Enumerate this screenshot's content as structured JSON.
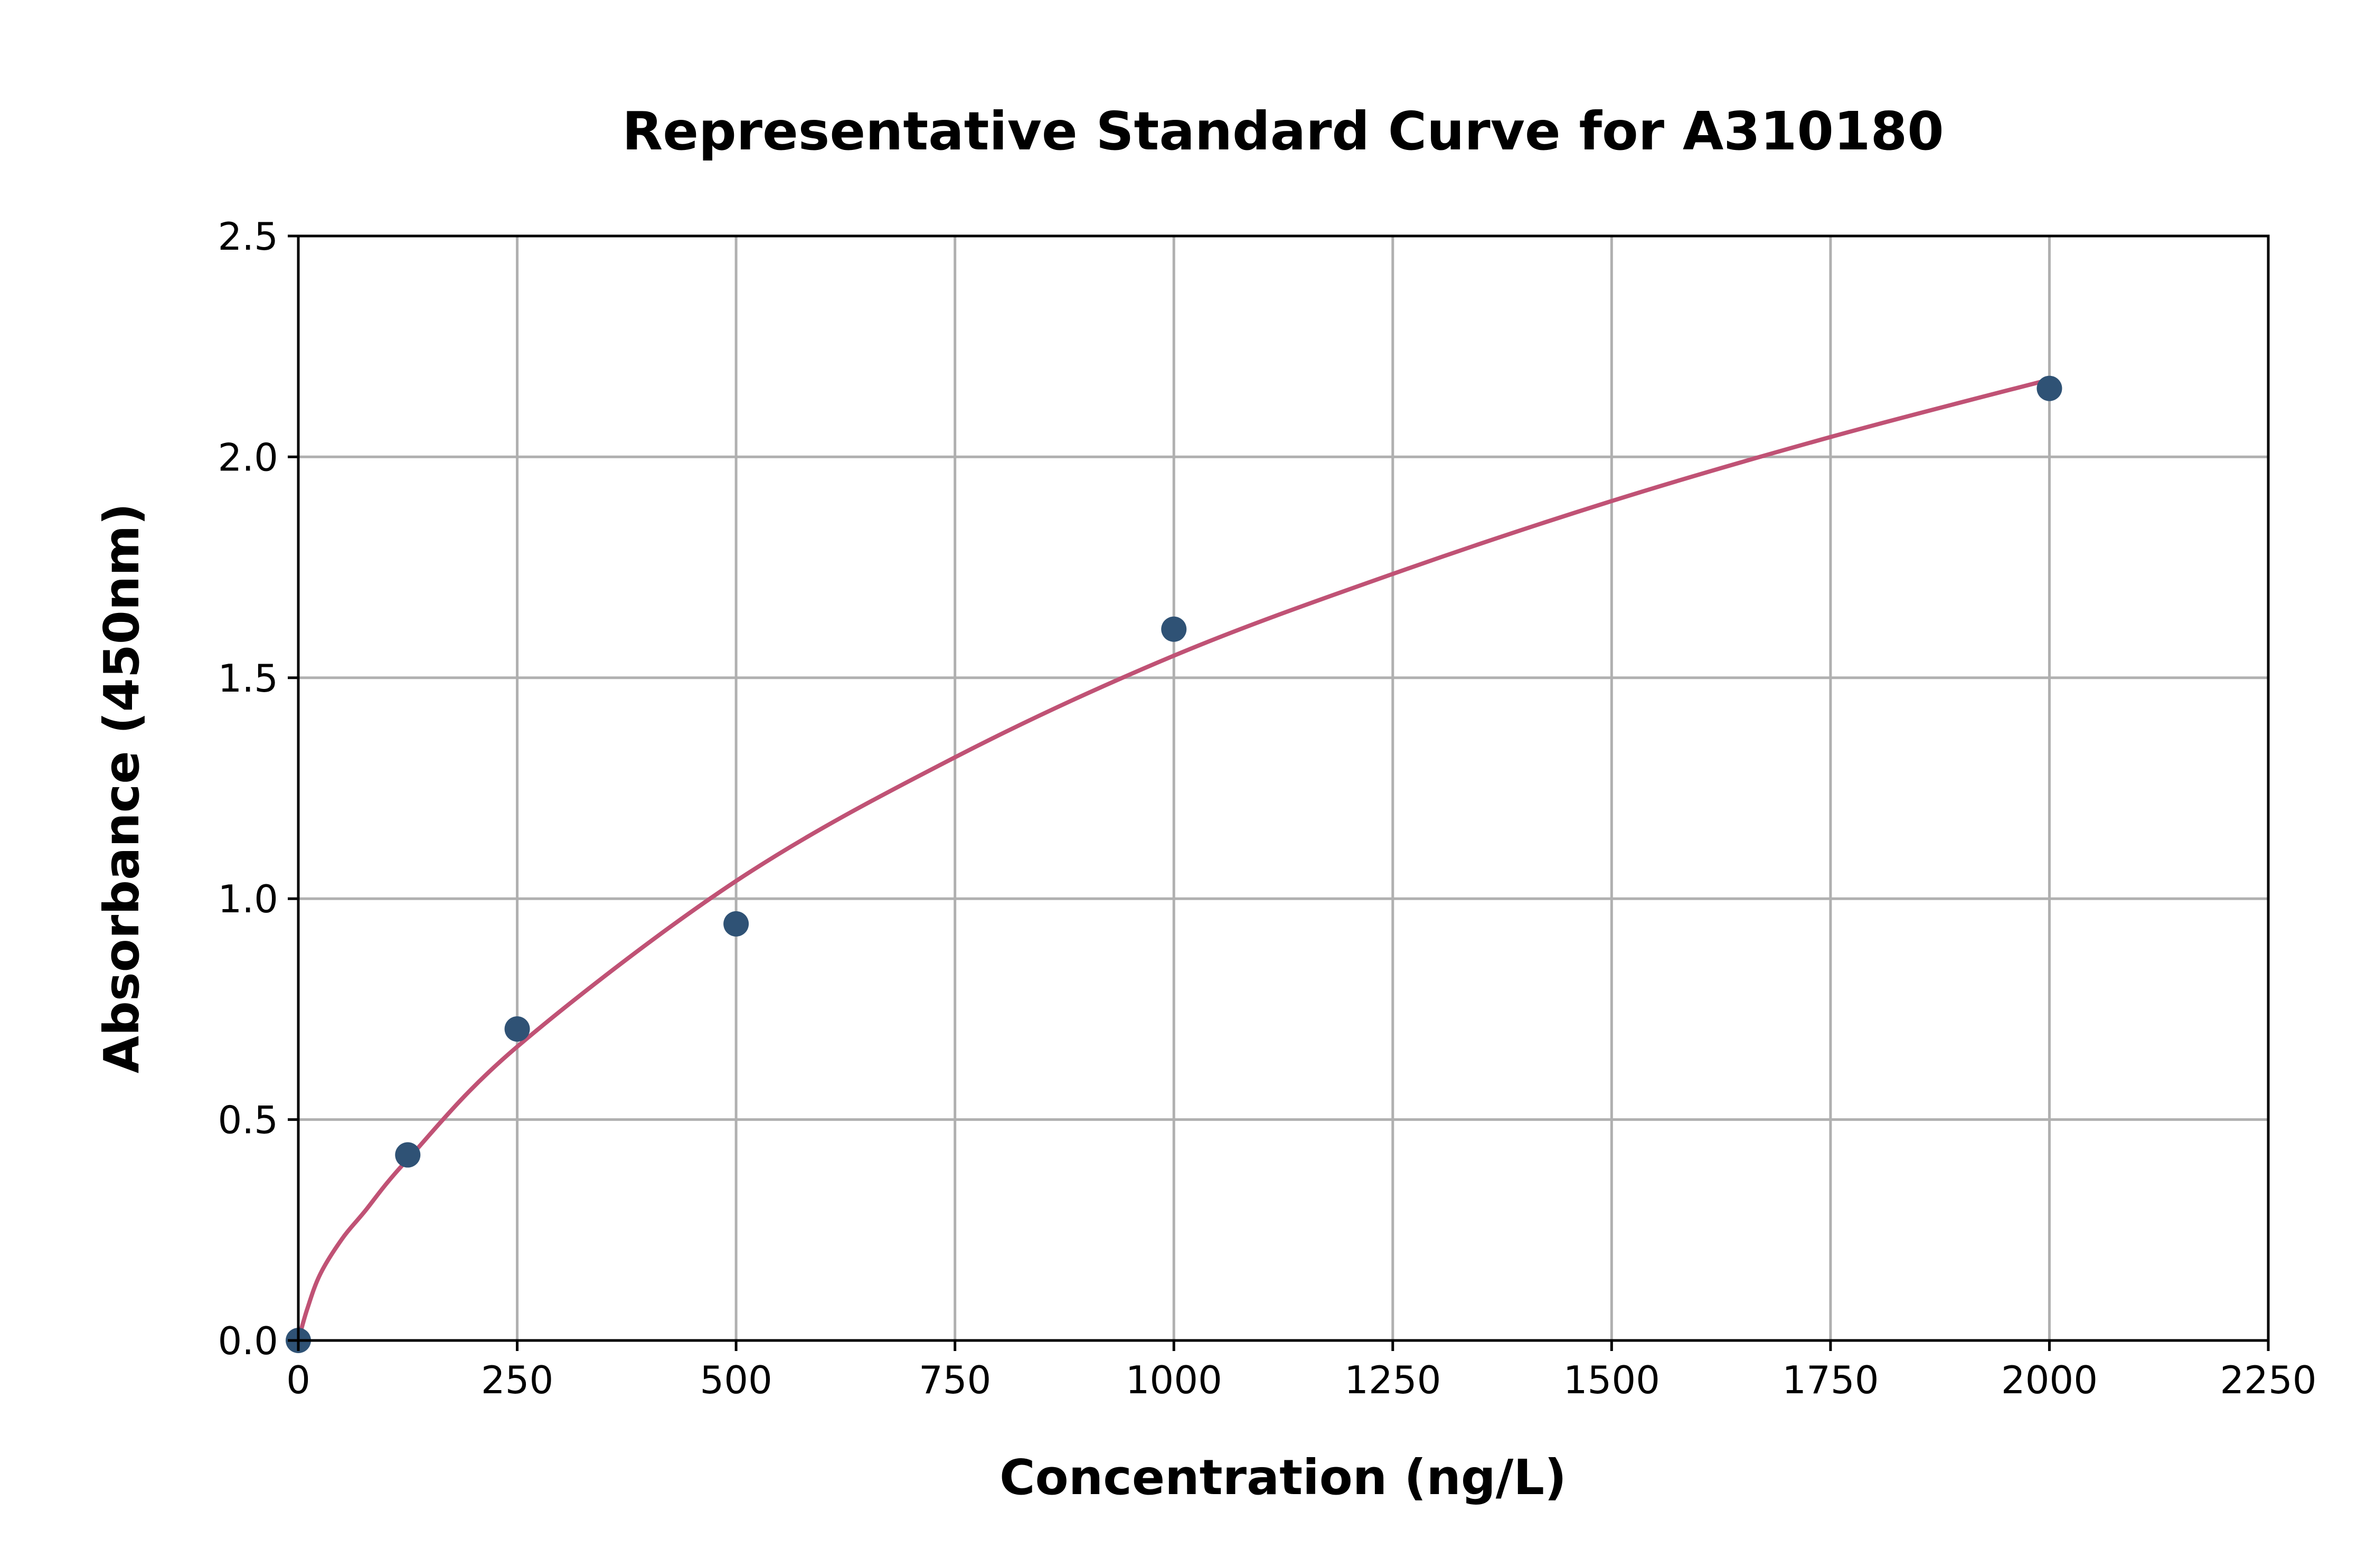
{
  "chart_data": {
    "type": "scatter",
    "title": "Representative Standard Curve for A310180",
    "xlabel": "Concentration (ng/L)",
    "ylabel": "Absorbance (450nm)",
    "xlim": [
      0,
      2250
    ],
    "ylim": [
      0,
      2.5
    ],
    "xticks": [
      "0",
      "250",
      "500",
      "750",
      "1000",
      "1250",
      "1500",
      "1750",
      "2000",
      "2250"
    ],
    "yticks": [
      "0.0",
      "0.5",
      "1.0",
      "1.5",
      "2.0",
      "2.5"
    ],
    "grid": true,
    "points": {
      "x": [
        0,
        125,
        250,
        500,
        1000,
        2000
      ],
      "y": [
        0.0,
        0.42,
        0.705,
        0.943,
        1.61,
        2.155
      ],
      "color": "#2f5275"
    },
    "fit_curve": {
      "x": [
        0,
        10,
        25,
        50,
        75,
        125,
        250,
        500,
        750,
        1000,
        1250,
        1500,
        1750,
        2000
      ],
      "y": [
        0,
        0.07,
        0.15,
        0.23,
        0.29,
        0.41,
        0.665,
        1.04,
        1.32,
        1.55,
        1.735,
        1.9,
        2.045,
        2.175
      ],
      "color": "#c05275"
    }
  }
}
